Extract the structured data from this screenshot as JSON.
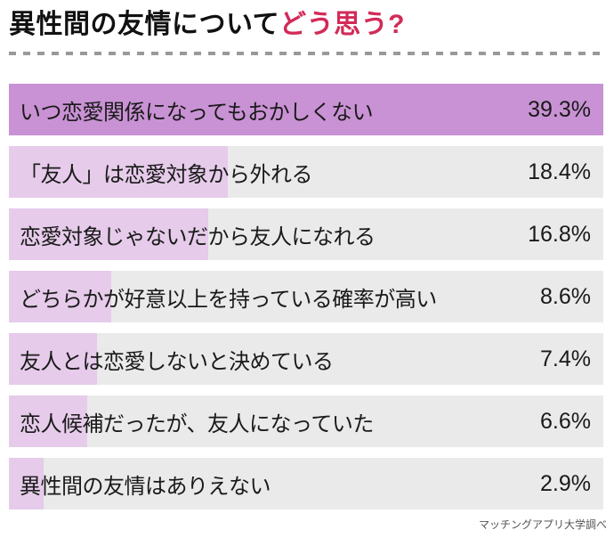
{
  "title": {
    "black_part": "異性間の友情について",
    "red_part": "どう思う?"
  },
  "caption": "マッチングアプリ大学調べ",
  "colors": {
    "title_accent_red": "#d22b58",
    "bar_highlight_purple": "#c992d4",
    "bar_fill_lilac": "#e6cbea",
    "bar_track_gray": "#eaeaea",
    "divider_dash_gray": "#999999",
    "text_black": "#1a1a1a",
    "caption_gray": "#555555"
  },
  "chart_data": {
    "type": "bar",
    "orientation": "horizontal",
    "title": "異性間の友情についてどう思う?",
    "categories": [
      "いつ恋愛関係になってもおかしくない",
      "「友人」は恋愛対象から外れる",
      "恋愛対象じゃないだから友人になれる",
      "どちらかが好意以上を持っている確率が高い",
      "友人とは恋愛しないと決めている",
      "恋人候補だったが、友人になっていた",
      "異性間の友情はありえない"
    ],
    "values": [
      39.3,
      18.4,
      16.8,
      8.6,
      7.4,
      6.6,
      2.9
    ],
    "value_labels": [
      "39.3%",
      "18.4%",
      "16.8%",
      "8.6%",
      "7.4%",
      "6.6%",
      "2.9%"
    ],
    "unit": "%",
    "highlight_index": 0,
    "legend": "none",
    "grid": "off",
    "source": "マッチングアプリ大学調べ"
  }
}
